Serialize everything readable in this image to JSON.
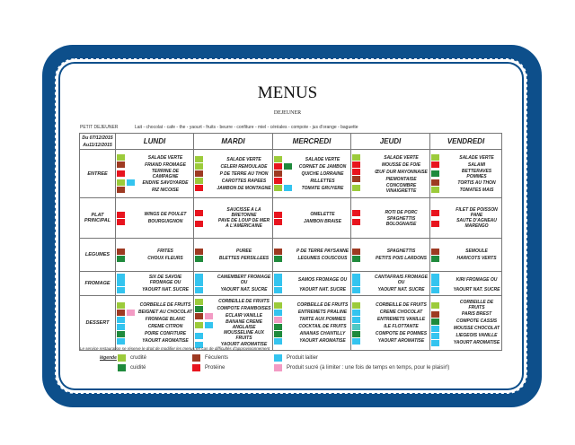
{
  "title": "MENUS",
  "subtitle": "DEJEUNER",
  "petit_dejeuner": {
    "label": "PETIT DEJEUNER",
    "text": "Lait - chocolat - cafe - the - yaourt - fruits - beurre - confiture - miel - céréales - compote - jus d'orange - baguette"
  },
  "colors": {
    "c": "#9ccb3b",
    "k": "#1f8a3c",
    "f": "#9e3a22",
    "p": "#e8141e",
    "l": "#34c4ef",
    "s": "#f39bc4",
    "t": "#4fc8c4",
    "frame": "#0d4f8b"
  },
  "date": "Du 07/12/2015 Au11/12/2015",
  "days": [
    "LUNDI",
    "MARDI",
    "MERCREDI",
    "JEUDI",
    "VENDREDI"
  ],
  "rows": [
    {
      "label": "ENTREE",
      "h": 54,
      "cells": [
        [
          {
            "t": "SALADE VERTE",
            "c": [
              "c"
            ]
          },
          {
            "t": "FRIAND FROMAGE",
            "c": [
              "f"
            ]
          },
          {
            "t": "TERRINE DE CAMPAGNE",
            "c": [
              "p"
            ]
          },
          {
            "t": "ENDIVE SAVOYARDE",
            "c": [
              "c",
              "l"
            ]
          },
          {
            "t": "RIZ NICOISE",
            "c": [
              "f"
            ]
          }
        ],
        [
          {
            "t": "SALADE VERTE",
            "c": [
              "c"
            ]
          },
          {
            "t": "CELERI REMOULADE",
            "c": [
              "c"
            ]
          },
          {
            "t": "P DE TERRE AU THON",
            "c": [
              "f"
            ]
          },
          {
            "t": "CAROTTES RAPEES",
            "c": [
              "c"
            ]
          },
          {
            "t": "JAMBON DE MONTAGNE",
            "c": [
              "p"
            ]
          }
        ],
        [
          {
            "t": "SALADE VERTE",
            "c": [
              "c"
            ]
          },
          {
            "t": "CORNET DE JAMBON",
            "c": [
              "p",
              "k"
            ]
          },
          {
            "t": "QUICHE LORRAINE",
            "c": [
              "f"
            ]
          },
          {
            "t": "RILLETTES",
            "c": [
              "p"
            ]
          },
          {
            "t": "TOMATE GRUYERE",
            "c": [
              "c",
              "l"
            ]
          }
        ],
        [
          {
            "t": "SALADE VERTE",
            "c": [
              "c"
            ]
          },
          {
            "t": "MOUSSE DE FOIE",
            "c": [
              "p"
            ]
          },
          {
            "t": "ŒUF DUR MAYONNAISE",
            "c": [
              "p"
            ]
          },
          {
            "t": "PIEMONTAISE",
            "c": [
              "f"
            ]
          },
          {
            "t": "CONCOMBRE VINAIGRETTE",
            "c": [
              "c"
            ]
          }
        ],
        [
          {
            "t": "SALADE VERTE",
            "c": [
              "c"
            ]
          },
          {
            "t": "SALAMI",
            "c": [
              "p"
            ]
          },
          {
            "t": "BETTERAVES POMMES",
            "c": [
              "k"
            ]
          },
          {
            "t": "TORTIS AU THON",
            "c": [
              "f"
            ]
          },
          {
            "t": "TOMATES MAIS",
            "c": [
              "c"
            ]
          }
        ]
      ]
    },
    {
      "label": "PLAT PRINCIPAL",
      "h": 45,
      "cells": [
        [
          {
            "t": "WINGS DE POULET",
            "c": [
              "p"
            ]
          },
          {
            "t": "BOURGUIGNON",
            "c": [
              "p"
            ]
          }
        ],
        [
          {
            "t": "SAUCISSE A LA BRETONNE",
            "c": [
              "p"
            ]
          },
          {
            "t": "PAVE DE LOUP DE MER A L'AMERICAINE",
            "c": [
              "p"
            ]
          }
        ],
        [
          {
            "t": "OMELETTE",
            "c": [
              "p"
            ]
          },
          {
            "t": "JAMBON BRAISE",
            "c": [
              "p"
            ]
          }
        ],
        [
          {
            "t": "ROTI DE PORC",
            "c": [
              "p"
            ]
          },
          {
            "t": "SPAGHETTIS BOLOGNAISE",
            "c": [
              "p"
            ]
          }
        ],
        [
          {
            "t": "FILET DE POISSON PANE",
            "c": [
              "p"
            ]
          },
          {
            "t": "SAUTE D'AGNEAU MARENGO",
            "c": [
              "p"
            ]
          }
        ]
      ]
    },
    {
      "label": "LEGUMES",
      "h": 37,
      "cells": [
        [
          {
            "t": "FRITES",
            "c": [
              "f"
            ]
          },
          {
            "t": "CHOUX FLEURS",
            "c": [
              "k"
            ]
          }
        ],
        [
          {
            "t": "PUREE",
            "c": [
              "f"
            ]
          },
          {
            "t": "BLETTES PERSILLEES",
            "c": [
              "k"
            ]
          }
        ],
        [
          {
            "t": "P DE TERRE PAYSANNE",
            "c": [
              "f"
            ]
          },
          {
            "t": "LEGUMES COUSCOUS",
            "c": [
              "k"
            ]
          }
        ],
        [
          {
            "t": "SPAGHETTIS",
            "c": [
              "f"
            ]
          },
          {
            "t": "PETITS POIS LARDONS",
            "c": [
              "k"
            ]
          }
        ],
        [
          {
            "t": "SEMOULE",
            "c": [
              "f"
            ]
          },
          {
            "t": "HARICOTS VERTS",
            "c": [
              "k"
            ]
          }
        ]
      ]
    },
    {
      "label": "FROMAGE",
      "h": 23,
      "cells": [
        [
          {
            "t": "SIX DE SAVOIE FROMAGE OU",
            "c": [
              "l"
            ]
          },
          {
            "t": "YAOURT NAT. SUCRE",
            "c": [
              "l"
            ]
          }
        ],
        [
          {
            "t": "CAMEMBERT FROMAGE OU",
            "c": [
              "l"
            ]
          },
          {
            "t": "YAOURT NAT. SUCRE",
            "c": [
              "l"
            ]
          }
        ],
        [
          {
            "t": "SAMOS FROMAGE OU",
            "c": [
              "l"
            ]
          },
          {
            "t": "YAOURT NAT. SUCRE",
            "c": [
              "l"
            ]
          }
        ],
        [
          {
            "t": "CANTAFRAIS FROMAGE OU",
            "c": [
              "l"
            ]
          },
          {
            "t": "YAOURT NAT. SUCRE",
            "c": [
              "l"
            ]
          }
        ],
        [
          {
            "t": "KIRI FROMAGE OU",
            "c": [
              "l"
            ]
          },
          {
            "t": "YAOURT NAT. SUCRE",
            "c": [
              "l"
            ]
          }
        ]
      ]
    },
    {
      "label": "DESSERT",
      "h": 60,
      "cells": [
        [
          {
            "t": "CORBEILLE DE FRUITS",
            "c": [
              "c"
            ]
          },
          {
            "t": "BEIGNET AU CHOCOLAT",
            "c": [
              "f",
              "s"
            ]
          },
          {
            "t": "FROMAGE BLANC",
            "c": [
              "l"
            ]
          },
          {
            "t": "CREME CITRON",
            "c": [
              "l"
            ]
          },
          {
            "t": "POIRE CONFITURE",
            "c": [
              "k"
            ]
          },
          {
            "t": "YAOURT AROMATISE",
            "c": [
              "l"
            ]
          }
        ],
        [
          {
            "t": "CORBEILLE DE FRUITS",
            "c": [
              "c"
            ]
          },
          {
            "t": "COMPOTE FRAMBOISES",
            "c": [
              "k"
            ]
          },
          {
            "t": "ECLAIR VANILLE",
            "c": [
              "f",
              "s"
            ]
          },
          {
            "t": "BANANE CREME ANGLAISE",
            "c": [
              "c",
              "l"
            ]
          },
          {
            "t": "MOUSSELINE AUX FRUITS",
            "c": [
              "l"
            ]
          },
          {
            "t": "YAOURT AROMATISE",
            "c": [
              "l"
            ]
          }
        ],
        [
          {
            "t": "CORBEILLE DE FRUITS",
            "c": [
              "c"
            ]
          },
          {
            "t": "ENTREMETS PRALINE",
            "c": [
              "l"
            ]
          },
          {
            "t": "TARTE AUX POMMES",
            "c": [
              "s"
            ]
          },
          {
            "t": "COCKTAIL DE FRUITS",
            "c": [
              "k"
            ]
          },
          {
            "t": "ANANAS CHANTILLY",
            "c": [
              "k"
            ]
          },
          {
            "t": "YAOURT AROMATISE",
            "c": [
              "l"
            ]
          }
        ],
        [
          {
            "t": "CORBEILLE DE FRUITS",
            "c": [
              "c"
            ]
          },
          {
            "t": "CREME CHOCOLAT",
            "c": [
              "l"
            ]
          },
          {
            "t": "ENTREMETS VANILLE",
            "c": [
              "l"
            ]
          },
          {
            "t": "ILE FLOTTANTE",
            "c": [
              "t"
            ]
          },
          {
            "t": "COMPOTE DE POMMES",
            "c": [
              "k"
            ]
          },
          {
            "t": "YAOURT AROMATISE",
            "c": [
              "l"
            ]
          }
        ],
        [
          {
            "t": "CORBEILLE DE FRUITS",
            "c": [
              "c"
            ]
          },
          {
            "t": "PARIS BREST",
            "c": [
              "f"
            ]
          },
          {
            "t": "COMPOTE CASSIS",
            "c": [
              "k"
            ]
          },
          {
            "t": "MOUSSE CHOCOLAT",
            "c": [
              "l"
            ]
          },
          {
            "t": "LIEGEOIS VANILLE",
            "c": [
              "l"
            ]
          },
          {
            "t": "YAOURT AROMATISE",
            "c": [
              "l"
            ]
          }
        ]
      ]
    }
  ],
  "note": "Le service restauration se réserve le droit de modifier les menus en cas de difficultés d'approvisionnement",
  "legend": {
    "title": "légende",
    "items": [
      {
        "k": "c",
        "label": "crudité"
      },
      {
        "k": "k",
        "label": "cuidité"
      },
      {
        "k": "f",
        "label": "Féculents"
      },
      {
        "k": "p",
        "label": "Protéine"
      },
      {
        "k": "l",
        "label": "Produit laitier"
      },
      {
        "k": "s",
        "label": "Produit sucré (à limiter : une fois de temps en temps, pour le plaisir!)"
      }
    ]
  }
}
